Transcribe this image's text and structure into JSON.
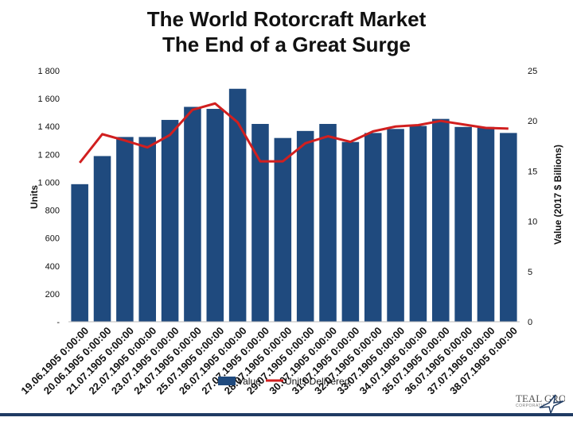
{
  "title_line1": "The World Rotorcraft Market",
  "title_line2": "The End of a Great Surge",
  "logo_text": "TEAL GROUP",
  "logo_subtext": "CORPORATION",
  "colors": {
    "bar": "#1f4a7e",
    "line": "#d11f1f",
    "background": "#ffffff"
  },
  "chart_data": {
    "type": "bar",
    "title": "The World Rotorcraft Market The End of a Great Surge",
    "categories": [
      "19.06.1905 0:00:00",
      "20.06.1905 0:00:00",
      "21.07.1905 0:00:00",
      "22.07.1905 0:00:00",
      "23.07.1905 0:00:00",
      "24.07.1905 0:00:00",
      "25.07.1905 0:00:00",
      "26.07.1905 0:00:00",
      "27.07.1905 0:00:00",
      "28.07.1905 0:00:00",
      "29.07.1905 0:00:00",
      "30.07.1905 0:00:00",
      "31.07.1905 0:00:00",
      "32.07.1905 0:00:00",
      "33.07.1905 0:00:00",
      "34.07.1905 0:00:00",
      "35.07.1905 0:00:00",
      "36.07.1905 0:00:00",
      "37.07.1905 0:00:00",
      "38.07.1905 0:00:00"
    ],
    "series": [
      {
        "name": "Value",
        "type": "bar",
        "axis": "right",
        "values": [
          13.7,
          16.5,
          18.4,
          18.4,
          20.1,
          21.4,
          21.2,
          23.2,
          19.7,
          18.3,
          19.0,
          19.7,
          17.9,
          18.8,
          19.2,
          19.5,
          20.2,
          19.4,
          19.4,
          18.8
        ]
      },
      {
        "name": "Units Delivered",
        "type": "line",
        "axis": "left",
        "values": [
          1140,
          1345,
          1300,
          1250,
          1340,
          1520,
          1565,
          1430,
          1150,
          1150,
          1280,
          1330,
          1290,
          1365,
          1400,
          1410,
          1440,
          1415,
          1390,
          1385
        ]
      }
    ],
    "ylabel": "Units",
    "y2label": "Value (2017 $ Billions)",
    "ylim": [
      0,
      1800
    ],
    "y2lim": [
      0,
      25
    ],
    "yticks": [
      "-",
      "200",
      "400",
      "600",
      "800",
      "1 000",
      "1 200",
      "1 400",
      "1 600",
      "1 800"
    ],
    "y2ticks": [
      "0",
      "5",
      "10",
      "15",
      "20",
      "25"
    ],
    "legend": [
      "Value",
      "Units Delivered"
    ],
    "legend_position": "bottom",
    "grid": false
  }
}
